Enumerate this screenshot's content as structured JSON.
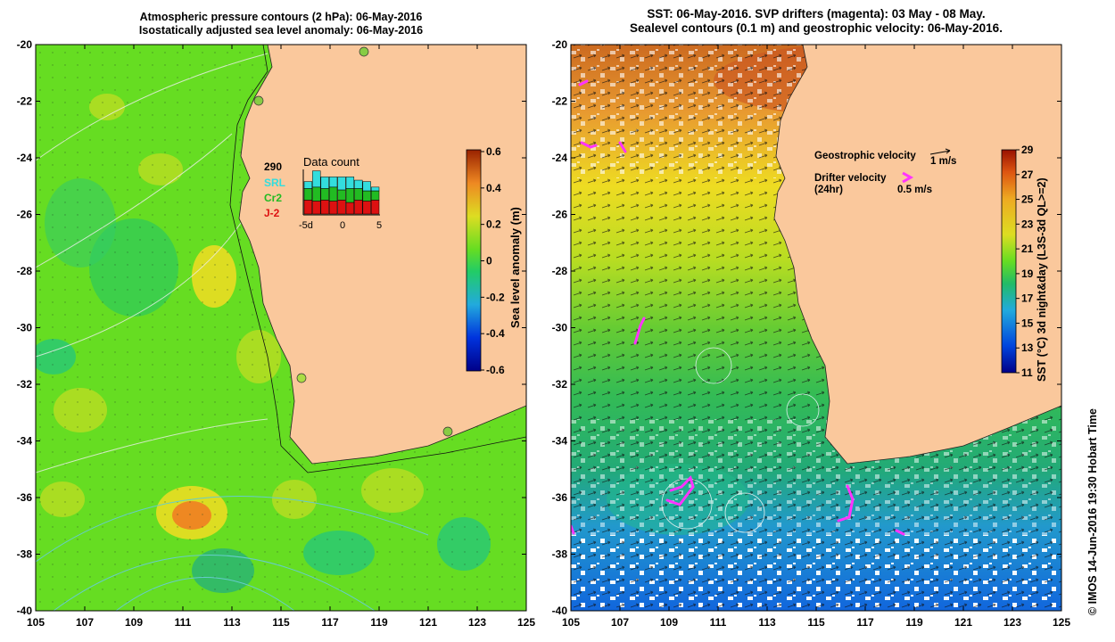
{
  "left_panel": {
    "title_line1": "Atmospheric pressure contours (2 hPa): 06-May-2016",
    "title_line2": "Isostatically adjusted sea level anomaly: 06-May-2016",
    "colorbar": {
      "label": "Sea level anomaly (m)",
      "ticks": [
        "0.6",
        "0.4",
        "0.2",
        "0",
        "-0.2",
        "-0.4",
        "-0.6"
      ]
    },
    "data_count": {
      "title": "Data count",
      "max_label": "290",
      "legend": [
        {
          "name": "SRL",
          "color": "#33dddd"
        },
        {
          "name": "Cr2",
          "color": "#22bb22"
        },
        {
          "name": "J-2",
          "color": "#dd1111"
        }
      ],
      "x_ticks": [
        "-5d",
        "0",
        "5"
      ],
      "bars": [
        {
          "j2": 0.3,
          "cr2": 0.25,
          "srl": 0.15
        },
        {
          "j2": 0.28,
          "cr2": 0.3,
          "srl": 0.35
        },
        {
          "j2": 0.3,
          "cr2": 0.25,
          "srl": 0.25
        },
        {
          "j2": 0.28,
          "cr2": 0.3,
          "srl": 0.22
        },
        {
          "j2": 0.3,
          "cr2": 0.22,
          "srl": 0.28
        },
        {
          "j2": 0.25,
          "cr2": 0.3,
          "srl": 0.25
        },
        {
          "j2": 0.3,
          "cr2": 0.25,
          "srl": 0.18
        },
        {
          "j2": 0.28,
          "cr2": 0.22,
          "srl": 0.2
        },
        {
          "j2": 0.3,
          "cr2": 0.2,
          "srl": 0.08
        }
      ]
    }
  },
  "right_panel": {
    "title_line1": "SST: 06-May-2016. SVP drifters (magenta): 03 May - 08 May.",
    "title_line2": "Sealevel contours (0.1 m) and geostrophic velocity: 06-May-2016.",
    "legend": {
      "geo_label": "Geostrophic velocity",
      "geo_speed": "1 m/s",
      "drifter_label": "Drifter velocity",
      "drifter_sub": "(24hr)",
      "drifter_speed": "0.5 m/s"
    },
    "colorbar": {
      "label": "SST (°C) 3d night&day (L3S-3d QL>=2)",
      "ticks": [
        "29",
        "27",
        "25",
        "23",
        "21",
        "19",
        "17",
        "15",
        "13",
        "11"
      ]
    }
  },
  "axes": {
    "y_ticks": [
      "-20",
      "-22",
      "-24",
      "-26",
      "-28",
      "-30",
      "-32",
      "-34",
      "-36",
      "-38",
      "-40"
    ],
    "x_ticks": [
      "105",
      "107",
      "109",
      "111",
      "113",
      "115",
      "117",
      "119",
      "121",
      "123",
      "125"
    ],
    "lon_range": [
      105,
      125
    ],
    "lat_range": [
      -40,
      -20
    ]
  },
  "credit": "© IMOS 14-Jun-2016 19:30 Hobart Time",
  "colors": {
    "land": "#fac89c",
    "sla_green": "#66dd22",
    "sst_orange": "#e89a30",
    "drifter": "#ff33ff"
  }
}
